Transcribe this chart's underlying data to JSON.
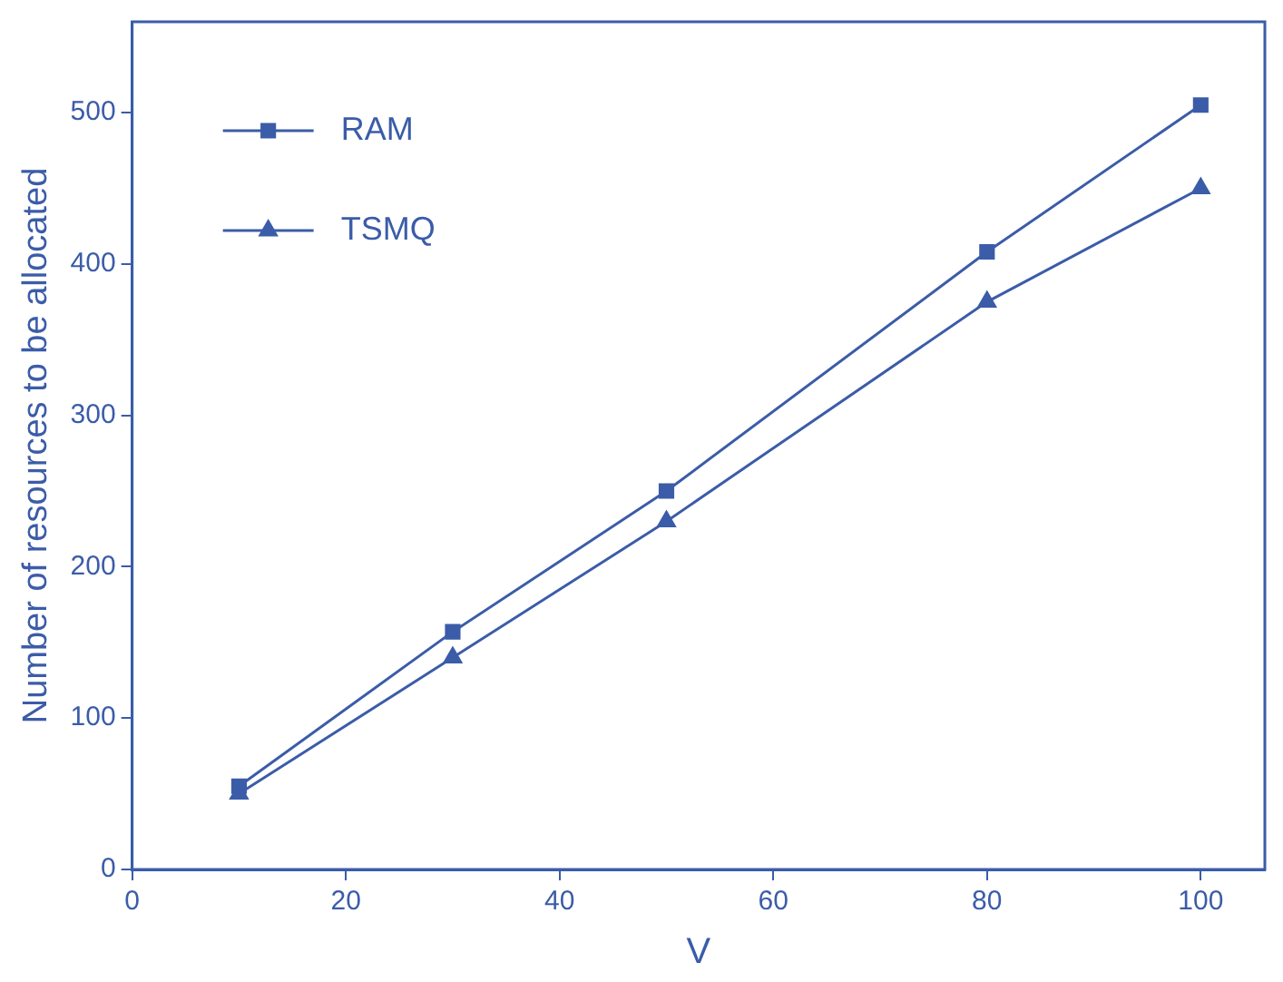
{
  "chart_data": {
    "type": "line",
    "xlabel": "V",
    "ylabel": "Number of resources to be allocated",
    "x": [
      10,
      30,
      50,
      80,
      100
    ],
    "series": [
      {
        "name": "RAM",
        "color": "#3b5ca8",
        "values": [
          55,
          157,
          250,
          408,
          505
        ],
        "marker": "square"
      },
      {
        "name": "TSMQ",
        "color": "#3b5ca8",
        "values": [
          50,
          140,
          230,
          375,
          450
        ],
        "marker": "triangle"
      }
    ],
    "xlim": [
      0,
      106
    ],
    "xticks": [
      0,
      20,
      40,
      60,
      80,
      100
    ],
    "ylim": [
      0,
      560
    ],
    "yticks": [
      0,
      100,
      200,
      300,
      400,
      500
    ],
    "grid": false,
    "legend": "top left",
    "line_style": "solid"
  }
}
